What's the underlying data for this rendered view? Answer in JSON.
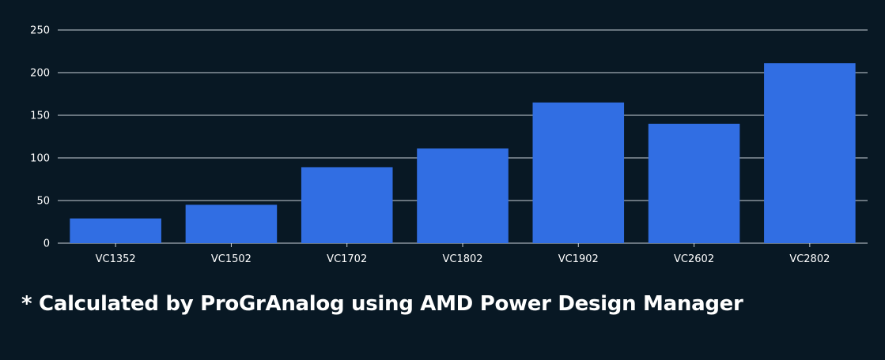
{
  "chart_data": {
    "type": "bar",
    "title": "",
    "xlabel": "",
    "ylabel": "",
    "categories": [
      "VC1352",
      "VC1502",
      "VC1702",
      "VC1802",
      "VC1902",
      "VC2602",
      "VC2802"
    ],
    "values": [
      29,
      45,
      89,
      111,
      165,
      140,
      211
    ],
    "ylim": [
      0,
      250
    ],
    "yticks": [
      0,
      50,
      100,
      150,
      200,
      250
    ],
    "grid": true,
    "legend": "none"
  },
  "footnote": "* Calculated by ProGrAnalog using AMD Power Design Manager",
  "colors": {
    "background": "#081824",
    "bar": "#316ee3",
    "grid": "#c8d0d8",
    "text": "#ffffff"
  }
}
